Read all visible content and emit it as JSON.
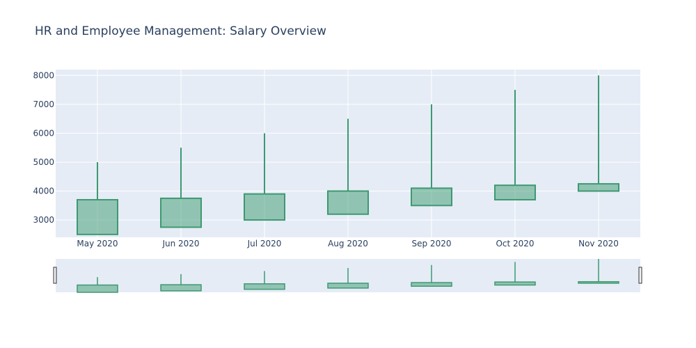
{
  "chart_data": {
    "type": "candlestick",
    "title": "HR and Employee Management: Salary Overview",
    "xlabel": "",
    "ylabel": "",
    "categories": [
      "May 2020",
      "Jun 2020",
      "Jul 2020",
      "Aug 2020",
      "Sep 2020",
      "Oct 2020",
      "Nov 2020"
    ],
    "open": [
      2500,
      2750,
      3000,
      3200,
      3500,
      3700,
      4000
    ],
    "high": [
      5000,
      5500,
      6000,
      6500,
      7000,
      7500,
      8000
    ],
    "low": [
      2500,
      2750,
      3000,
      3200,
      3500,
      3700,
      4000
    ],
    "close": [
      3700,
      3750,
      3900,
      4000,
      4100,
      4200,
      4250
    ],
    "yticks": [
      "3000",
      "4000",
      "5000",
      "6000",
      "7000",
      "8000"
    ],
    "ylim": [
      2400,
      8200
    ],
    "grid": true,
    "rangeslider": true,
    "colors": {
      "increasing_line": "#3d9970",
      "increasing_fill": "rgba(61,153,112,0.5)",
      "plot_bg": "#e5ecf6",
      "grid": "#ffffff",
      "text": "#2a3f5f"
    }
  }
}
